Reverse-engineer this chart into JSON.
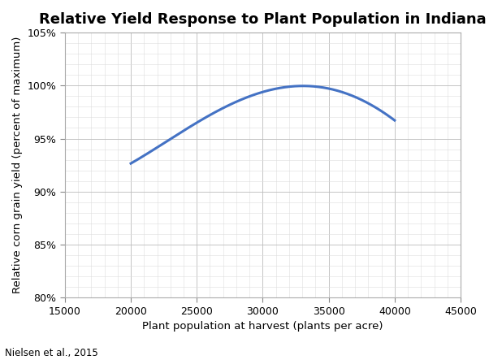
{
  "title": "Relative Yield Response to Plant Population in Indiana",
  "xlabel": "Plant population at harvest (plants per acre)",
  "ylabel": "Relative corn grain yield (percent of maximum)",
  "citation": "Nielsen et al., 2015",
  "xlim": [
    15000,
    45000
  ],
  "ylim": [
    0.8,
    1.05
  ],
  "xticks": [
    15000,
    20000,
    25000,
    30000,
    35000,
    40000,
    45000
  ],
  "yticks": [
    0.8,
    0.85,
    0.9,
    0.95,
    1.0,
    1.05
  ],
  "curve_x": [
    20000,
    21000,
    22000,
    23000,
    24000,
    25000,
    26000,
    27000,
    28000,
    29000,
    30000,
    31000,
    32000,
    33000,
    34000,
    35000,
    36000,
    37000,
    38000,
    39000,
    40000
  ],
  "curve_y": [
    0.926,
    0.934,
    0.942,
    0.95,
    0.958,
    0.965,
    0.972,
    0.978,
    0.984,
    0.989,
    0.994,
    0.998,
    1.0,
    1.0,
    0.999,
    0.997,
    0.994,
    0.989,
    0.983,
    0.975,
    0.968
  ],
  "line_color": "#4472C4",
  "line_width": 2.2,
  "bg_color": "#FFFFFF",
  "plot_bg_color": "#FFFFFF",
  "grid_color_major": "#BBBBBB",
  "grid_color_minor": "#DDDDDD",
  "title_fontsize": 13,
  "label_fontsize": 9.5,
  "tick_fontsize": 9,
  "citation_fontsize": 8.5
}
